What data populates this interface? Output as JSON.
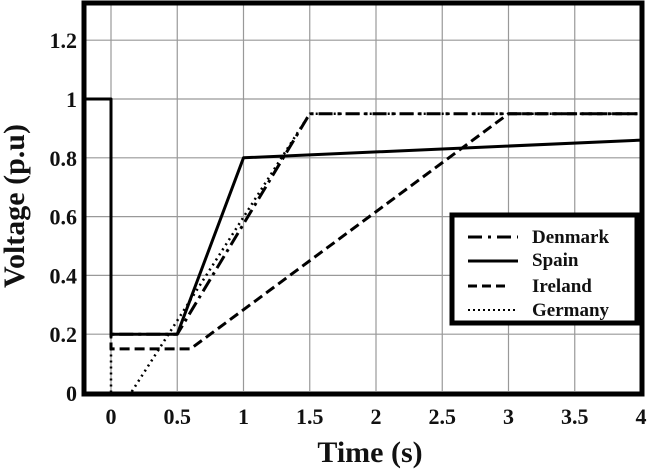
{
  "chart_data": {
    "type": "line",
    "title": "",
    "xlabel": "Time (s)",
    "ylabel": "Voltage (p.u)",
    "xlim": [
      -0.2,
      4
    ],
    "ylim": [
      0,
      1.32
    ],
    "grid": true,
    "legend_position": "center-right",
    "x_ticks": [
      "0",
      "0.5",
      "1",
      "1.5",
      "2",
      "2.5",
      "3",
      "3.5",
      "4"
    ],
    "y_ticks": [
      "0",
      "0.2",
      "0.4",
      "0.6",
      "0.8",
      "1",
      "1.2"
    ],
    "series": [
      {
        "name": "Denmark",
        "style": "dash-dot",
        "x": [
          -0.2,
          0,
          0,
          0.5,
          1.5,
          4
        ],
        "y": [
          1,
          1,
          0.2,
          0.2,
          0.95,
          0.95
        ]
      },
      {
        "name": "Spain",
        "style": "solid",
        "x": [
          -0.2,
          0,
          0,
          0.5,
          1,
          4
        ],
        "y": [
          1,
          1,
          0.2,
          0.2,
          0.8,
          0.86
        ]
      },
      {
        "name": "Ireland",
        "style": "dashed",
        "x": [
          -0.2,
          0,
          0,
          0.6,
          3,
          4
        ],
        "y": [
          1,
          1,
          0.15,
          0.15,
          0.95,
          0.95
        ]
      },
      {
        "name": "Germany",
        "style": "dotted",
        "x": [
          -0.2,
          0,
          0,
          0.15,
          1.5,
          4
        ],
        "y": [
          1,
          1,
          0,
          0,
          0.95,
          0.95
        ]
      }
    ]
  },
  "legend": {
    "items": [
      {
        "label": "Denmark"
      },
      {
        "label": "Spain"
      },
      {
        "label": "Ireland"
      },
      {
        "label": "Germany"
      }
    ]
  },
  "axes": {
    "xlabel": "Time (s)",
    "ylabel": "Voltage (p.u)"
  }
}
